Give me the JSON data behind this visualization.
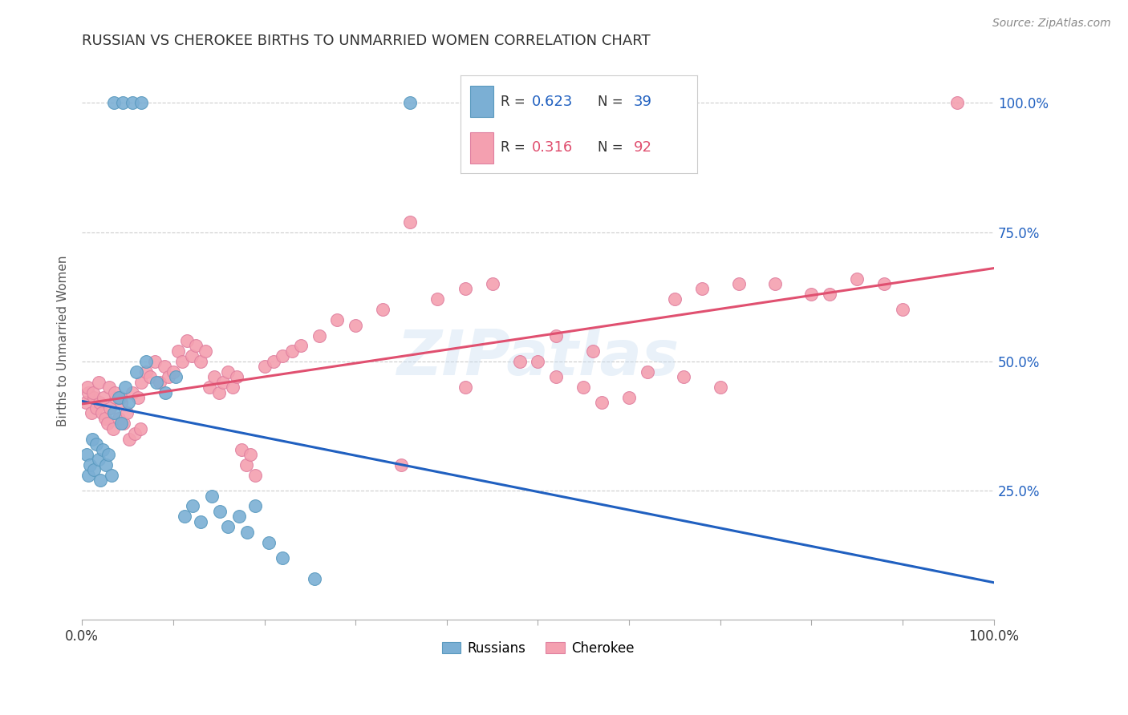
{
  "title": "RUSSIAN VS CHEROKEE BIRTHS TO UNMARRIED WOMEN CORRELATION CHART",
  "source": "Source: ZipAtlas.com",
  "ylabel": "Births to Unmarried Women",
  "background_color": "#ffffff",
  "watermark": "ZIPatlas",
  "russians_color": "#7bafd4",
  "russians_edge": "#5a9abf",
  "cherokee_color": "#f4a0b0",
  "cherokee_edge": "#e080a0",
  "regression_blue": "#2060c0",
  "regression_pink": "#e05070",
  "right_axis_color": "#2060c0",
  "russian_R": "0.623",
  "russian_N": "39",
  "cherokee_R": "0.316",
  "cherokee_N": "92",
  "legend_R_color": "#333333",
  "legend_val_blue": "#2060c0",
  "legend_val_pink": "#e05070",
  "ru_x": [
    0.5,
    0.7,
    0.9,
    1.1,
    1.3,
    1.6,
    1.8,
    2.0,
    2.3,
    2.6,
    2.9,
    3.2,
    3.5,
    4.0,
    4.3,
    4.7,
    5.1,
    6.0,
    7.0,
    8.2,
    9.1,
    10.3,
    11.2,
    12.1,
    13.0,
    14.2,
    15.1,
    16.0,
    17.2,
    18.1,
    19.0,
    20.5,
    22.0,
    25.5,
    3.5,
    4.5,
    5.5,
    6.5,
    36.0
  ],
  "ru_y": [
    32,
    28,
    30,
    35,
    29,
    34,
    31,
    27,
    33,
    30,
    32,
    28,
    40,
    43,
    38,
    45,
    42,
    48,
    50,
    46,
    44,
    47,
    20,
    22,
    19,
    24,
    21,
    18,
    20,
    17,
    22,
    15,
    12,
    8,
    100,
    100,
    100,
    100,
    100
  ],
  "ch_x": [
    0.4,
    0.7,
    1.0,
    1.3,
    1.6,
    1.9,
    2.2,
    2.5,
    2.8,
    3.1,
    3.4,
    3.7,
    4.0,
    4.3,
    4.6,
    4.9,
    5.2,
    5.5,
    5.8,
    6.1,
    6.4,
    0.6,
    1.2,
    1.8,
    2.4,
    3.0,
    3.6,
    4.2,
    6.5,
    7.0,
    7.5,
    8.0,
    8.5,
    9.0,
    9.5,
    10.0,
    10.5,
    11.0,
    11.5,
    12.0,
    12.5,
    13.0,
    13.5,
    14.0,
    14.5,
    15.0,
    15.5,
    16.0,
    16.5,
    17.0,
    17.5,
    18.0,
    18.5,
    19.0,
    20.0,
    21.0,
    22.0,
    23.0,
    24.0,
    26.0,
    28.0,
    30.0,
    33.0,
    36.0,
    39.0,
    42.0,
    45.0,
    50.0,
    52.0,
    55.0,
    57.0,
    60.0,
    65.0,
    68.0,
    72.0,
    80.0,
    85.0,
    90.0,
    35.0,
    42.0,
    48.0,
    52.0,
    56.0,
    62.0,
    66.0,
    70.0,
    76.0,
    82.0,
    88.0,
    96.0
  ],
  "ch_y": [
    42,
    44,
    40,
    43,
    41,
    42,
    40,
    39,
    38,
    41,
    37,
    43,
    39,
    42,
    38,
    40,
    35,
    44,
    36,
    43,
    37,
    45,
    44,
    46,
    43,
    45,
    44,
    43,
    46,
    48,
    47,
    50,
    46,
    49,
    47,
    48,
    52,
    50,
    54,
    51,
    53,
    50,
    52,
    45,
    47,
    44,
    46,
    48,
    45,
    47,
    33,
    30,
    32,
    28,
    49,
    50,
    51,
    52,
    53,
    55,
    58,
    57,
    60,
    77,
    62,
    64,
    65,
    50,
    47,
    45,
    42,
    43,
    62,
    64,
    65,
    63,
    66,
    60,
    30,
    45,
    50,
    55,
    52,
    48,
    47,
    45,
    65,
    63,
    65,
    100
  ]
}
